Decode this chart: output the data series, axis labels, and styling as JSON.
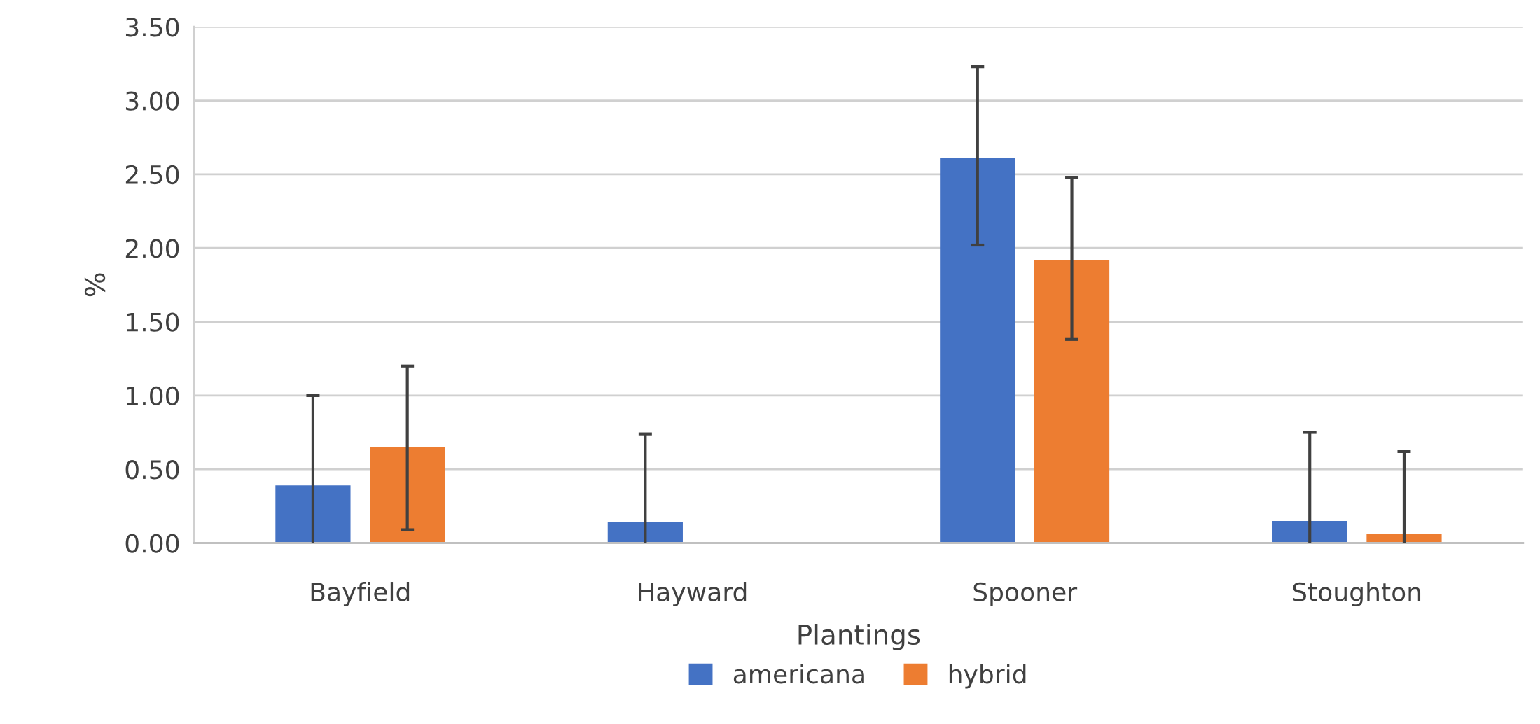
{
  "chart_data": {
    "type": "bar",
    "xlabel": "Plantings",
    "ylabel": "%",
    "categories": [
      "Bayfield",
      "Hayward",
      "Spooner",
      "Stoughton"
    ],
    "series": [
      {
        "name": "americana",
        "color": "#4472c4",
        "values": [
          0.39,
          0.14,
          2.61,
          0.15
        ],
        "errors": [
          [
            0.0,
            1.0
          ],
          [
            0.0,
            0.74
          ],
          [
            2.02,
            3.23
          ],
          [
            0.0,
            0.75
          ]
        ]
      },
      {
        "name": "hybrid",
        "color": "#ed7d31",
        "values": [
          0.65,
          0.0,
          1.92,
          0.06
        ],
        "errors": [
          [
            0.09,
            1.2
          ],
          null,
          [
            1.38,
            2.48
          ],
          [
            0.0,
            0.62
          ]
        ]
      }
    ],
    "ylim": [
      0,
      3.5
    ],
    "yticks": [
      {
        "value": 0,
        "label": "0.00"
      },
      {
        "value": 0.5,
        "label": "0.50"
      },
      {
        "value": 1.0,
        "label": "1.00"
      },
      {
        "value": 1.5,
        "label": "1.50"
      },
      {
        "value": 2.0,
        "label": "2.00"
      },
      {
        "value": 2.5,
        "label": "2.50"
      },
      {
        "value": 3.0,
        "label": "3.00"
      },
      {
        "value": 3.5,
        "label": "3.50"
      }
    ],
    "grid": "y",
    "legend": "bottom"
  }
}
